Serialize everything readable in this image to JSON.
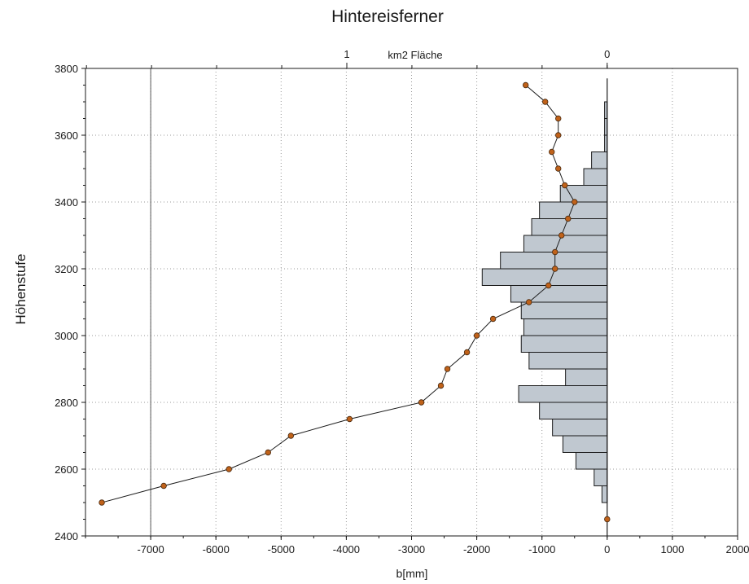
{
  "chart_data": {
    "type": "bar+line",
    "title": "Hintereisferner",
    "xlabel": "b[mm]",
    "ylabel": "Höhenstufe",
    "top_axis_label": "km2 Fläche",
    "top_axis_ticks": [
      {
        "value": 1,
        "label": "1"
      },
      {
        "value": 0,
        "label": "0"
      }
    ],
    "xlim": [
      -8000,
      2000
    ],
    "ylim": [
      2400,
      3800
    ],
    "xticks": [
      -7000,
      -6000,
      -5000,
      -4000,
      -3000,
      -2000,
      -1000,
      0,
      1000,
      2000
    ],
    "yticks": [
      2400,
      2600,
      2800,
      3000,
      3200,
      3400,
      3600,
      3800
    ],
    "grid": true,
    "area_bars": {
      "name": "km2 Fläche",
      "unit": "km2",
      "band_height": 50,
      "color": "#c0c8d0",
      "bands": [
        {
          "y0": 2500,
          "area": 0.02
        },
        {
          "y0": 2550,
          "area": 0.05
        },
        {
          "y0": 2600,
          "area": 0.12
        },
        {
          "y0": 2650,
          "area": 0.17
        },
        {
          "y0": 2700,
          "area": 0.21
        },
        {
          "y0": 2750,
          "area": 0.26
        },
        {
          "y0": 2800,
          "area": 0.34
        },
        {
          "y0": 2850,
          "area": 0.16
        },
        {
          "y0": 2900,
          "area": 0.3
        },
        {
          "y0": 2950,
          "area": 0.33
        },
        {
          "y0": 3000,
          "area": 0.32
        },
        {
          "y0": 3050,
          "area": 0.33
        },
        {
          "y0": 3100,
          "area": 0.37
        },
        {
          "y0": 3150,
          "area": 0.48
        },
        {
          "y0": 3200,
          "area": 0.41
        },
        {
          "y0": 3250,
          "area": 0.32
        },
        {
          "y0": 3300,
          "area": 0.29
        },
        {
          "y0": 3350,
          "area": 0.26
        },
        {
          "y0": 3400,
          "area": 0.18
        },
        {
          "y0": 3450,
          "area": 0.09
        },
        {
          "y0": 3500,
          "area": 0.06
        },
        {
          "y0": 3550,
          "area": 0.01
        },
        {
          "y0": 3600,
          "area": 0.01
        },
        {
          "y0": 3650,
          "area": 0.01
        }
      ]
    },
    "series": [
      {
        "name": "b",
        "color": "#c0621a",
        "points": [
          {
            "x": 0,
            "y": 2450
          },
          {
            "x": -7750,
            "y": 2500
          },
          {
            "x": -6800,
            "y": 2550
          },
          {
            "x": -5800,
            "y": 2600
          },
          {
            "x": -5200,
            "y": 2650
          },
          {
            "x": -4850,
            "y": 2700
          },
          {
            "x": -3950,
            "y": 2750
          },
          {
            "x": -2850,
            "y": 2800
          },
          {
            "x": -2550,
            "y": 2850
          },
          {
            "x": -2450,
            "y": 2900
          },
          {
            "x": -2150,
            "y": 2950
          },
          {
            "x": -2000,
            "y": 3000
          },
          {
            "x": -1750,
            "y": 3050
          },
          {
            "x": -1200,
            "y": 3100
          },
          {
            "x": -900,
            "y": 3150
          },
          {
            "x": -800,
            "y": 3200
          },
          {
            "x": -800,
            "y": 3250
          },
          {
            "x": -700,
            "y": 3300
          },
          {
            "x": -600,
            "y": 3350
          },
          {
            "x": -500,
            "y": 3400
          },
          {
            "x": -650,
            "y": 3450
          },
          {
            "x": -750,
            "y": 3500
          },
          {
            "x": -850,
            "y": 3550
          },
          {
            "x": -750,
            "y": 3600
          },
          {
            "x": -750,
            "y": 3650
          },
          {
            "x": -950,
            "y": 3700
          },
          {
            "x": -1250,
            "y": 3750
          }
        ]
      }
    ],
    "reference_line_x": -7000
  }
}
